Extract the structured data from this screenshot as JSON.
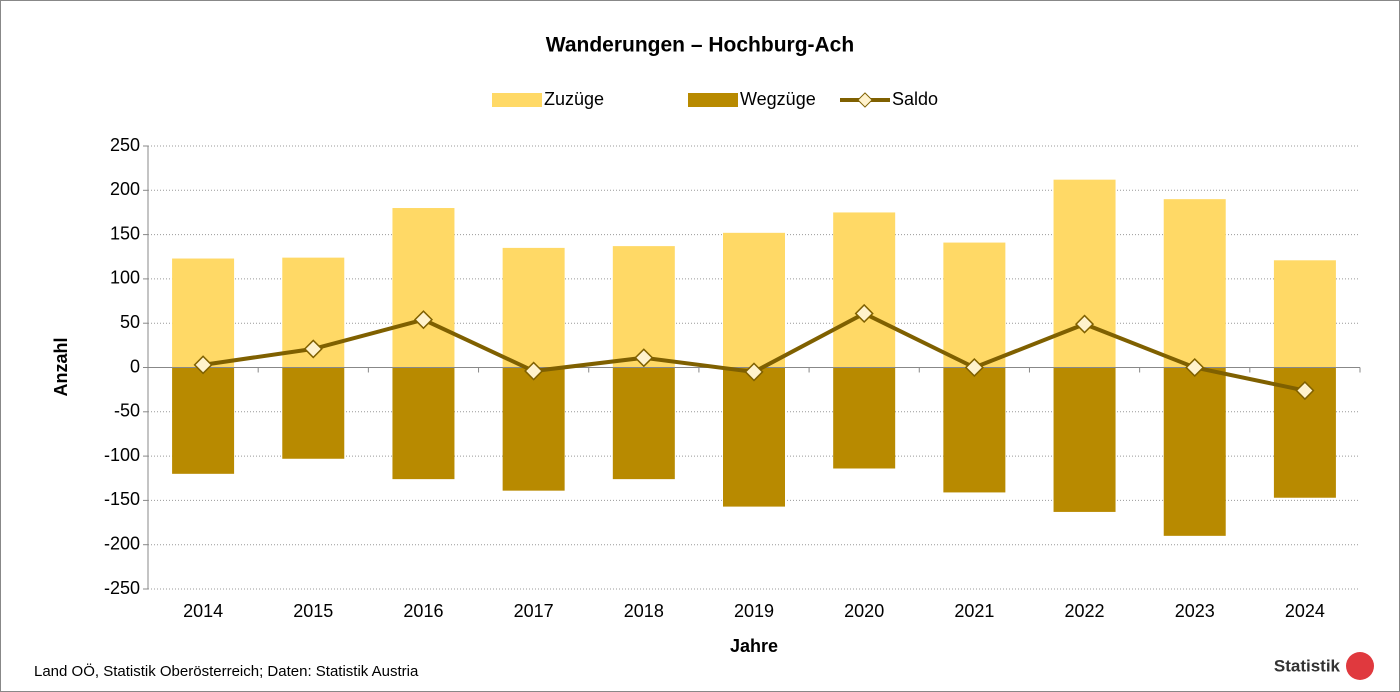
{
  "chart_data": {
    "type": "bar",
    "title": "Wanderungen – Hochburg-Ach",
    "categories": [
      "2014",
      "2015",
      "2016",
      "2017",
      "2018",
      "2019",
      "2020",
      "2021",
      "2022",
      "2023",
      "2024"
    ],
    "series": [
      {
        "name": "Zuzüge",
        "color": "#ffd966",
        "values": [
          123,
          124,
          180,
          135,
          137,
          152,
          175,
          141,
          212,
          190,
          121
        ]
      },
      {
        "name": "Wegzüge",
        "color": "#b88a00",
        "values": [
          -120,
          -103,
          -126,
          -139,
          -126,
          -157,
          -114,
          -141,
          -163,
          -190,
          -147
        ]
      },
      {
        "name": "Saldo",
        "type": "line",
        "color": "#7f6000",
        "marker_color": "#fff2cc",
        "values": [
          3,
          21,
          54,
          -4,
          11,
          -5,
          61,
          0,
          49,
          0,
          -26
        ]
      }
    ],
    "ylim": [
      -250,
      250
    ],
    "yticks": [
      -250,
      -200,
      -150,
      -100,
      -50,
      0,
      50,
      100,
      150,
      200,
      250
    ],
    "grid": true,
    "legend": "top",
    "ylabel": "Anzahl",
    "xlabel": "Jahre",
    "source": "Land OÖ, Statistik Oberösterreich; Daten: Statistik Austria",
    "logo_text": "Statistik"
  }
}
